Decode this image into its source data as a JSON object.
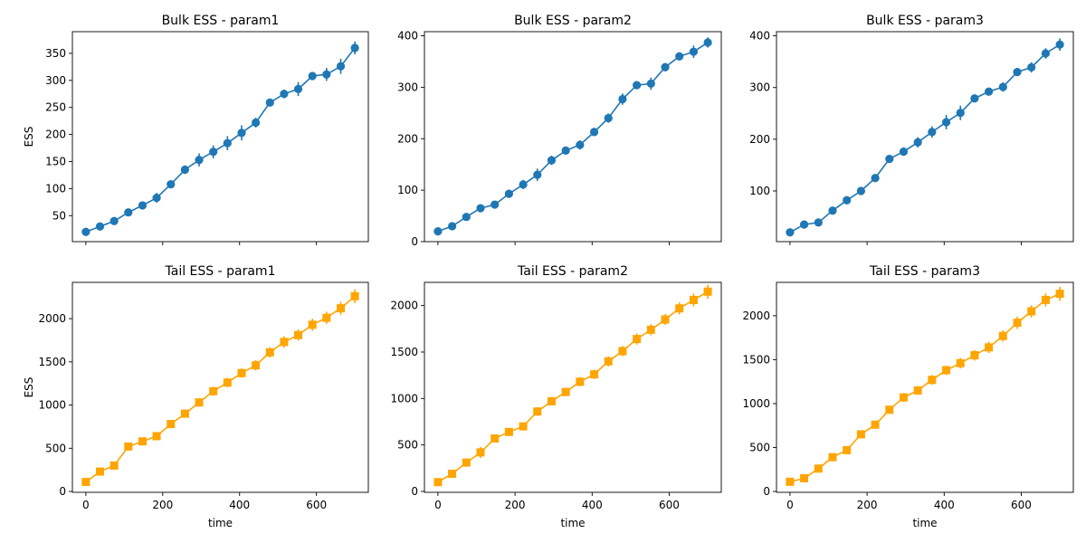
{
  "colors": {
    "bulk": "#1f77b4",
    "tail": "#ffa500"
  },
  "chart_data": [
    {
      "type": "line",
      "marker": "circle",
      "title": "Bulk ESS - param1",
      "xlabel": "",
      "ylabel": "ESS",
      "xlim": [
        -35,
        735
      ],
      "ylim": [
        2,
        390
      ],
      "xticks": [
        0,
        200,
        400,
        600
      ],
      "xtick_labels": [
        "",
        "",
        "",
        ""
      ],
      "yticks": [
        50,
        100,
        150,
        200,
        250,
        300,
        350
      ],
      "ytick_labels": [
        "50",
        "100",
        "150",
        "200",
        "250",
        "300",
        "350"
      ],
      "series": [
        {
          "x": [
            0,
            36.8,
            73.7,
            110.5,
            147.4,
            184.2,
            221.1,
            257.9,
            294.7,
            331.6,
            368.4,
            405.3,
            442.1,
            478.9,
            515.8,
            552.6,
            589.5,
            626.3,
            663.2,
            700
          ],
          "y": [
            20,
            30,
            40,
            56,
            69,
            83,
            108,
            135,
            153,
            168,
            184,
            203,
            222,
            259,
            275,
            284,
            308,
            311,
            326,
            360
          ],
          "err": [
            4,
            4,
            4,
            5,
            5,
            9,
            7,
            8,
            12,
            12,
            13,
            14,
            9,
            6,
            8,
            13,
            6,
            12,
            14,
            12
          ]
        }
      ]
    },
    {
      "type": "line",
      "marker": "circle",
      "title": "Bulk ESS - param2",
      "xlabel": "",
      "ylabel": "",
      "xlim": [
        -35,
        735
      ],
      "ylim": [
        0,
        408
      ],
      "xticks": [
        0,
        200,
        400,
        600
      ],
      "xtick_labels": [
        "",
        "",
        "",
        ""
      ],
      "yticks": [
        0,
        100,
        200,
        300,
        400
      ],
      "ytick_labels": [
        "0",
        "100",
        "200",
        "300",
        "400"
      ],
      "series": [
        {
          "x": [
            0,
            36.8,
            73.7,
            110.5,
            147.4,
            184.2,
            221.1,
            257.9,
            294.7,
            331.6,
            368.4,
            405.3,
            442.1,
            478.9,
            515.8,
            552.6,
            589.5,
            626.3,
            663.2,
            700
          ],
          "y": [
            20,
            30,
            48,
            65,
            72,
            93,
            111,
            130,
            158,
            177,
            188,
            213,
            240,
            277,
            304,
            307,
            339,
            360,
            369,
            387
          ],
          "err": [
            4,
            4,
            4,
            4,
            5,
            7,
            9,
            12,
            9,
            7,
            9,
            8,
            9,
            11,
            6,
            12,
            8,
            8,
            12,
            10
          ]
        }
      ]
    },
    {
      "type": "line",
      "marker": "circle",
      "title": "Bulk ESS - param3",
      "xlabel": "",
      "ylabel": "",
      "xlim": [
        -35,
        735
      ],
      "ylim": [
        2,
        408
      ],
      "xticks": [
        0,
        200,
        400,
        600
      ],
      "xtick_labels": [
        "",
        "",
        "",
        ""
      ],
      "yticks": [
        100,
        200,
        300,
        400
      ],
      "ytick_labels": [
        "100",
        "200",
        "300",
        "400"
      ],
      "series": [
        {
          "x": [
            0,
            36.8,
            73.7,
            110.5,
            147.4,
            184.2,
            221.1,
            257.9,
            294.7,
            331.6,
            368.4,
            405.3,
            442.1,
            478.9,
            515.8,
            552.6,
            589.5,
            626.3,
            663.2,
            700
          ],
          "y": [
            20,
            35,
            39,
            62,
            82,
            100,
            125,
            162,
            176,
            194,
            214,
            233,
            251,
            279,
            292,
            301,
            330,
            339,
            366,
            383
          ],
          "err": [
            4,
            4,
            4,
            5,
            6,
            5,
            6,
            7,
            8,
            10,
            11,
            14,
            14,
            7,
            7,
            9,
            8,
            10,
            10,
            12
          ]
        }
      ]
    },
    {
      "type": "line",
      "marker": "square",
      "title": "Tail ESS - param1",
      "xlabel": "time",
      "ylabel": "ESS",
      "xlim": [
        -35,
        735
      ],
      "ylim": [
        -10,
        2420
      ],
      "xticks": [
        0,
        200,
        400,
        600
      ],
      "xtick_labels": [
        "0",
        "200",
        "400",
        "600"
      ],
      "yticks": [
        0,
        500,
        1000,
        1500,
        2000
      ],
      "ytick_labels": [
        "0",
        "500",
        "1000",
        "1500",
        "2000"
      ],
      "series": [
        {
          "x": [
            0,
            36.8,
            73.7,
            110.5,
            147.4,
            184.2,
            221.1,
            257.9,
            294.7,
            331.6,
            368.4,
            405.3,
            442.1,
            478.9,
            515.8,
            552.6,
            589.5,
            626.3,
            663.2,
            700
          ],
          "y": [
            110,
            230,
            300,
            520,
            580,
            640,
            780,
            900,
            1030,
            1160,
            1260,
            1370,
            1460,
            1610,
            1730,
            1810,
            1930,
            2010,
            2120,
            2260
          ],
          "err": [
            20,
            25,
            30,
            35,
            35,
            40,
            45,
            45,
            50,
            50,
            55,
            55,
            60,
            60,
            65,
            65,
            70,
            70,
            75,
            80
          ]
        }
      ]
    },
    {
      "type": "line",
      "marker": "square",
      "title": "Tail ESS - param2",
      "xlabel": "time",
      "ylabel": "",
      "xlim": [
        -35,
        735
      ],
      "ylim": [
        -10,
        2250
      ],
      "xticks": [
        0,
        200,
        400,
        600
      ],
      "xtick_labels": [
        "0",
        "200",
        "400",
        "600"
      ],
      "yticks": [
        0,
        500,
        1000,
        1500,
        2000
      ],
      "ytick_labels": [
        "0",
        "500",
        "1000",
        "1500",
        "2000"
      ],
      "series": [
        {
          "x": [
            0,
            36.8,
            73.7,
            110.5,
            147.4,
            184.2,
            221.1,
            257.9,
            294.7,
            331.6,
            368.4,
            405.3,
            442.1,
            478.9,
            515.8,
            552.6,
            589.5,
            626.3,
            663.2,
            700
          ],
          "y": [
            100,
            190,
            310,
            420,
            570,
            640,
            700,
            860,
            970,
            1070,
            1180,
            1260,
            1400,
            1510,
            1640,
            1740,
            1850,
            1970,
            2060,
            2150
          ],
          "err": [
            20,
            25,
            35,
            60,
            35,
            35,
            40,
            45,
            45,
            45,
            50,
            50,
            55,
            55,
            60,
            60,
            60,
            65,
            70,
            75
          ]
        }
      ]
    },
    {
      "type": "line",
      "marker": "square",
      "title": "Tail ESS - param3",
      "xlabel": "time",
      "ylabel": "",
      "xlim": [
        -35,
        735
      ],
      "ylim": [
        -10,
        2380
      ],
      "xticks": [
        0,
        200,
        400,
        600
      ],
      "xtick_labels": [
        "0",
        "200",
        "400",
        "600"
      ],
      "yticks": [
        0,
        500,
        1000,
        1500,
        2000
      ],
      "ytick_labels": [
        "0",
        "500",
        "1000",
        "1500",
        "2000"
      ],
      "series": [
        {
          "x": [
            0,
            36.8,
            73.7,
            110.5,
            147.4,
            184.2,
            221.1,
            257.9,
            294.7,
            331.6,
            368.4,
            405.3,
            442.1,
            478.9,
            515.8,
            552.6,
            589.5,
            626.3,
            663.2,
            700
          ],
          "y": [
            110,
            150,
            260,
            390,
            470,
            650,
            760,
            930,
            1070,
            1150,
            1270,
            1380,
            1460,
            1550,
            1640,
            1770,
            1920,
            2050,
            2180,
            2250
          ],
          "err": [
            20,
            25,
            30,
            35,
            35,
            40,
            45,
            45,
            50,
            50,
            55,
            55,
            60,
            60,
            65,
            65,
            70,
            70,
            75,
            80
          ]
        }
      ]
    }
  ]
}
